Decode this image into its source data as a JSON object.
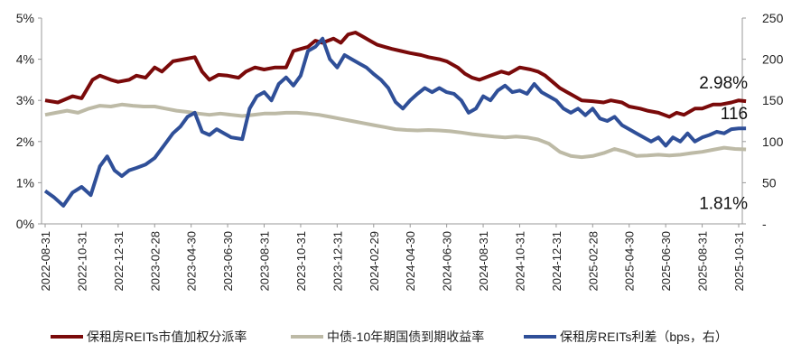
{
  "chart_data": {
    "type": "line",
    "title": "",
    "xlabel": "",
    "ylabel": "",
    "ylim": [
      0,
      5
    ],
    "y2lim": [
      0,
      250
    ],
    "y_ticks": [
      "0%",
      "1%",
      "2%",
      "3%",
      "4%",
      "5%"
    ],
    "y2_ticks": [
      "-",
      "50",
      "100",
      "150",
      "200",
      "250"
    ],
    "x_ticks": [
      "2022-08-31",
      "2022-10-31",
      "2022-12-31",
      "2023-02-28",
      "2023-04-30",
      "2023-06-30",
      "2023-08-31",
      "2023-10-31",
      "2023-12-31",
      "2024-02-29",
      "2024-04-30",
      "2024-06-30",
      "2024-08-31",
      "2024-10-31",
      "2024-12-31",
      "2025-02-28",
      "2025-04-30",
      "2025-06-30",
      "2025-08-31",
      "2025-10-31"
    ],
    "legend_position": "bottom",
    "grid": false,
    "series": [
      {
        "name": "保租房REITs市值加权分派率",
        "axis": "left",
        "color": "#7a0a0a",
        "points": [
          [
            0,
            3.0
          ],
          [
            0.7,
            2.95
          ],
          [
            1.5,
            3.1
          ],
          [
            2,
            3.05
          ],
          [
            2.6,
            3.5
          ],
          [
            3,
            3.6
          ],
          [
            3.6,
            3.5
          ],
          [
            4,
            3.45
          ],
          [
            4.6,
            3.5
          ],
          [
            5,
            3.6
          ],
          [
            5.5,
            3.55
          ],
          [
            6,
            3.8
          ],
          [
            6.4,
            3.7
          ],
          [
            7,
            3.95
          ],
          [
            7.6,
            4.0
          ],
          [
            8.2,
            4.05
          ],
          [
            8.6,
            3.7
          ],
          [
            9,
            3.5
          ],
          [
            9.5,
            3.62
          ],
          [
            10,
            3.6
          ],
          [
            10.6,
            3.55
          ],
          [
            11,
            3.7
          ],
          [
            11.5,
            3.8
          ],
          [
            12,
            3.75
          ],
          [
            12.6,
            3.8
          ],
          [
            13.2,
            3.8
          ],
          [
            13.6,
            4.2
          ],
          [
            14,
            4.25
          ],
          [
            14.4,
            4.3
          ],
          [
            14.8,
            4.45
          ],
          [
            15.2,
            4.4
          ],
          [
            15.8,
            4.5
          ],
          [
            16.2,
            4.4
          ],
          [
            16.6,
            4.6
          ],
          [
            17,
            4.65
          ],
          [
            17.4,
            4.55
          ],
          [
            17.8,
            4.45
          ],
          [
            18.2,
            4.35
          ],
          [
            18.6,
            4.3
          ],
          [
            19,
            4.25
          ],
          [
            19.5,
            4.2
          ],
          [
            20,
            4.15
          ],
          [
            20.6,
            4.1
          ],
          [
            21,
            4.05
          ],
          [
            21.6,
            4.0
          ],
          [
            22,
            3.95
          ],
          [
            22.6,
            3.8
          ],
          [
            23,
            3.65
          ],
          [
            23.4,
            3.55
          ],
          [
            23.8,
            3.5
          ],
          [
            24.4,
            3.6
          ],
          [
            25,
            3.7
          ],
          [
            25.4,
            3.65
          ],
          [
            26,
            3.8
          ],
          [
            26.6,
            3.75
          ],
          [
            27,
            3.7
          ],
          [
            27.4,
            3.6
          ],
          [
            27.8,
            3.45
          ],
          [
            28.2,
            3.3
          ],
          [
            28.6,
            3.2
          ],
          [
            29,
            3.1
          ],
          [
            29.4,
            3.0
          ],
          [
            30,
            2.98
          ],
          [
            30.6,
            2.95
          ],
          [
            31,
            3.0
          ],
          [
            31.6,
            2.95
          ],
          [
            32,
            2.85
          ],
          [
            32.6,
            2.8
          ],
          [
            33,
            2.75
          ],
          [
            33.6,
            2.7
          ],
          [
            34.2,
            2.6
          ],
          [
            34.6,
            2.7
          ],
          [
            35,
            2.65
          ],
          [
            35.6,
            2.8
          ],
          [
            36,
            2.8
          ],
          [
            36.6,
            2.9
          ],
          [
            37,
            2.9
          ],
          [
            37.6,
            2.95
          ],
          [
            38,
            3.0
          ],
          [
            38.4,
            2.98
          ]
        ]
      },
      {
        "name": "中债-10年期国债到期收益率",
        "axis": "left",
        "color": "#bdbaa6",
        "points": [
          [
            0,
            2.65
          ],
          [
            0.6,
            2.7
          ],
          [
            1.2,
            2.75
          ],
          [
            1.8,
            2.7
          ],
          [
            2.4,
            2.8
          ],
          [
            3,
            2.87
          ],
          [
            3.6,
            2.85
          ],
          [
            4.2,
            2.9
          ],
          [
            4.8,
            2.87
          ],
          [
            5.4,
            2.85
          ],
          [
            6,
            2.85
          ],
          [
            6.6,
            2.8
          ],
          [
            7.2,
            2.75
          ],
          [
            7.8,
            2.72
          ],
          [
            8.4,
            2.68
          ],
          [
            9,
            2.65
          ],
          [
            9.6,
            2.68
          ],
          [
            10.2,
            2.65
          ],
          [
            10.8,
            2.62
          ],
          [
            11.4,
            2.65
          ],
          [
            12,
            2.68
          ],
          [
            12.6,
            2.68
          ],
          [
            13.2,
            2.7
          ],
          [
            13.8,
            2.7
          ],
          [
            14.4,
            2.68
          ],
          [
            15,
            2.65
          ],
          [
            15.6,
            2.6
          ],
          [
            16.2,
            2.55
          ],
          [
            16.8,
            2.5
          ],
          [
            17.4,
            2.45
          ],
          [
            18,
            2.4
          ],
          [
            18.6,
            2.35
          ],
          [
            19.2,
            2.3
          ],
          [
            19.8,
            2.28
          ],
          [
            20.4,
            2.27
          ],
          [
            21,
            2.28
          ],
          [
            21.6,
            2.27
          ],
          [
            22.2,
            2.25
          ],
          [
            22.8,
            2.22
          ],
          [
            23.4,
            2.18
          ],
          [
            24,
            2.15
          ],
          [
            24.6,
            2.12
          ],
          [
            25.2,
            2.1
          ],
          [
            25.8,
            2.12
          ],
          [
            26.4,
            2.1
          ],
          [
            27,
            2.05
          ],
          [
            27.6,
            1.95
          ],
          [
            28.2,
            1.75
          ],
          [
            28.8,
            1.65
          ],
          [
            29.4,
            1.62
          ],
          [
            30,
            1.65
          ],
          [
            30.6,
            1.72
          ],
          [
            31.2,
            1.82
          ],
          [
            31.8,
            1.75
          ],
          [
            32.4,
            1.65
          ],
          [
            33,
            1.66
          ],
          [
            33.6,
            1.68
          ],
          [
            34.2,
            1.66
          ],
          [
            34.8,
            1.68
          ],
          [
            35.4,
            1.72
          ],
          [
            36,
            1.75
          ],
          [
            36.6,
            1.8
          ],
          [
            37.2,
            1.85
          ],
          [
            37.8,
            1.82
          ],
          [
            38.4,
            1.81
          ]
        ]
      },
      {
        "name": "保租房REITs利差（bps，右）",
        "axis": "right",
        "color": "#2f4f98",
        "points": [
          [
            0,
            40
          ],
          [
            0.5,
            32
          ],
          [
            1,
            22
          ],
          [
            1.5,
            38
          ],
          [
            2,
            45
          ],
          [
            2.5,
            35
          ],
          [
            3,
            70
          ],
          [
            3.4,
            82
          ],
          [
            3.8,
            65
          ],
          [
            4.2,
            58
          ],
          [
            4.6,
            65
          ],
          [
            5,
            68
          ],
          [
            5.5,
            72
          ],
          [
            6,
            80
          ],
          [
            6.5,
            95
          ],
          [
            7,
            110
          ],
          [
            7.4,
            118
          ],
          [
            7.8,
            130
          ],
          [
            8.2,
            135
          ],
          [
            8.6,
            112
          ],
          [
            9,
            108
          ],
          [
            9.4,
            115
          ],
          [
            9.8,
            110
          ],
          [
            10.2,
            105
          ],
          [
            10.8,
            103
          ],
          [
            11.2,
            140
          ],
          [
            11.6,
            155
          ],
          [
            12,
            160
          ],
          [
            12.4,
            150
          ],
          [
            12.8,
            170
          ],
          [
            13.2,
            178
          ],
          [
            13.6,
            168
          ],
          [
            14,
            180
          ],
          [
            14.4,
            210
          ],
          [
            14.8,
            215
          ],
          [
            15.2,
            225
          ],
          [
            15.6,
            200
          ],
          [
            16,
            190
          ],
          [
            16.4,
            205
          ],
          [
            16.8,
            200
          ],
          [
            17.2,
            195
          ],
          [
            17.6,
            190
          ],
          [
            18,
            182
          ],
          [
            18.4,
            175
          ],
          [
            18.8,
            165
          ],
          [
            19.2,
            148
          ],
          [
            19.6,
            140
          ],
          [
            20,
            150
          ],
          [
            20.4,
            158
          ],
          [
            20.8,
            165
          ],
          [
            21.2,
            160
          ],
          [
            21.6,
            165
          ],
          [
            22,
            160
          ],
          [
            22.4,
            158
          ],
          [
            22.8,
            150
          ],
          [
            23.2,
            135
          ],
          [
            23.6,
            140
          ],
          [
            24,
            155
          ],
          [
            24.4,
            150
          ],
          [
            24.8,
            162
          ],
          [
            25.2,
            168
          ],
          [
            25.6,
            160
          ],
          [
            26,
            162
          ],
          [
            26.4,
            158
          ],
          [
            26.8,
            170
          ],
          [
            27.2,
            160
          ],
          [
            27.6,
            155
          ],
          [
            28,
            150
          ],
          [
            28.4,
            140
          ],
          [
            28.8,
            135
          ],
          [
            29.2,
            140
          ],
          [
            29.6,
            132
          ],
          [
            30,
            140
          ],
          [
            30.4,
            128
          ],
          [
            30.8,
            125
          ],
          [
            31.2,
            130
          ],
          [
            31.6,
            120
          ],
          [
            32,
            115
          ],
          [
            32.4,
            110
          ],
          [
            32.8,
            105
          ],
          [
            33.2,
            100
          ],
          [
            33.6,
            105
          ],
          [
            34,
            95
          ],
          [
            34.4,
            105
          ],
          [
            34.8,
            100
          ],
          [
            35.2,
            110
          ],
          [
            35.6,
            100
          ],
          [
            36,
            105
          ],
          [
            36.4,
            108
          ],
          [
            36.8,
            112
          ],
          [
            37.2,
            110
          ],
          [
            37.6,
            115
          ],
          [
            38,
            116
          ],
          [
            38.4,
            116
          ]
        ]
      }
    ],
    "annotations": [
      {
        "text": "2.98%",
        "series": 0
      },
      {
        "text": "116",
        "series": 2
      },
      {
        "text": "1.81%",
        "series": 1
      }
    ]
  }
}
